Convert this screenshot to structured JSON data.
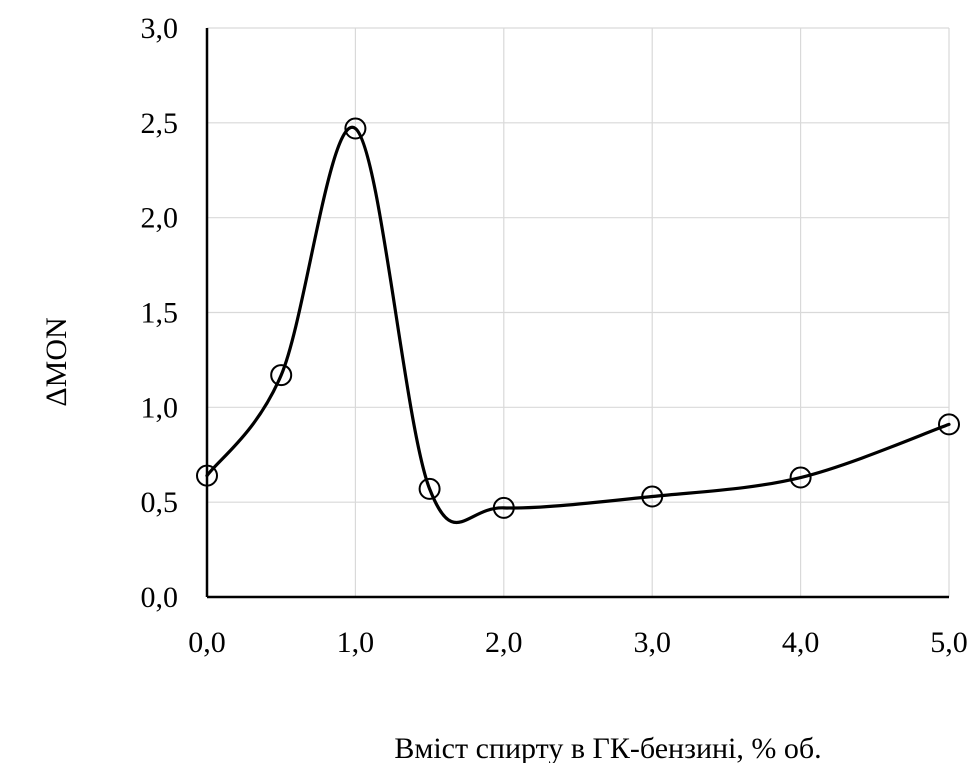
{
  "chart_data": {
    "type": "line",
    "title": "",
    "xlabel": "Вміст спирту в ГК-бензині, % об.",
    "ylabel": "ΔMON",
    "xlim": [
      0,
      5
    ],
    "ylim": [
      0,
      3
    ],
    "grid": true,
    "legend": "none",
    "x_ticks": [
      {
        "value": 0,
        "label": "0,0"
      },
      {
        "value": 1,
        "label": "1,0"
      },
      {
        "value": 2,
        "label": "2,0"
      },
      {
        "value": 3,
        "label": "3,0"
      },
      {
        "value": 4,
        "label": "4,0"
      },
      {
        "value": 5,
        "label": "5,0"
      }
    ],
    "y_ticks": [
      {
        "value": 0,
        "label": "0,0"
      },
      {
        "value": 0.5,
        "label": "0,5"
      },
      {
        "value": 1,
        "label": "1,0"
      },
      {
        "value": 1.5,
        "label": "1,5"
      },
      {
        "value": 2,
        "label": "2,0"
      },
      {
        "value": 2.5,
        "label": "2,5"
      },
      {
        "value": 3,
        "label": "3,0"
      }
    ],
    "series": [
      {
        "x": [
          0,
          0.5,
          1.0,
          1.5,
          2.0,
          3.0,
          4.0,
          5.0
        ],
        "y": [
          0.64,
          1.17,
          2.47,
          0.57,
          0.47,
          0.53,
          0.63,
          0.91
        ]
      }
    ],
    "colors": {
      "line": "#000000",
      "grid": "#d9d9d9",
      "axis": "#000000"
    }
  }
}
